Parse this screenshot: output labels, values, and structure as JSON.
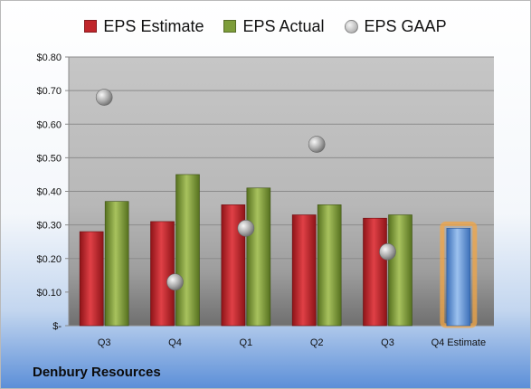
{
  "company": "Denbury Resources",
  "chart_data": {
    "type": "bar",
    "categories": [
      "Q3",
      "Q4",
      "Q1",
      "Q2",
      "Q3",
      "Q4 Estimate"
    ],
    "series": [
      {
        "name": "EPS Estimate",
        "color": "#c0262b",
        "values": [
          0.28,
          0.31,
          0.36,
          0.33,
          0.32,
          null
        ]
      },
      {
        "name": "EPS Actual",
        "color": "#7d9d3a",
        "values": [
          0.37,
          0.45,
          0.41,
          0.36,
          0.33,
          null
        ]
      },
      {
        "name": "Q4 Estimate",
        "color": "#5b8fd6",
        "values": [
          null,
          null,
          null,
          null,
          null,
          0.29
        ]
      }
    ],
    "gaap": {
      "name": "EPS GAAP",
      "type": "scatter",
      "color": "#b3b3b3",
      "values": [
        0.68,
        0.13,
        0.29,
        0.54,
        0.22,
        null
      ]
    },
    "legend": [
      "EPS Estimate",
      "EPS Actual",
      "EPS GAAP"
    ],
    "legend_placement": "top",
    "ylim": [
      0,
      0.8
    ],
    "yticks": [
      0,
      0.1,
      0.2,
      0.3,
      0.4,
      0.5,
      0.6,
      0.7,
      0.8
    ],
    "ytick_labels": [
      "$-",
      "$0.10",
      "$0.20",
      "$0.30",
      "$0.40",
      "$0.50",
      "$0.60",
      "$0.70",
      "$0.80"
    ],
    "grid": true
  }
}
